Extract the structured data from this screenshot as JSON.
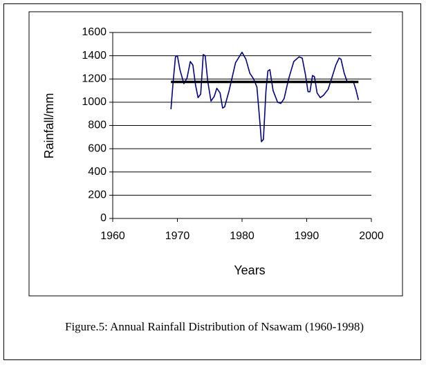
{
  "chart_data": {
    "type": "line",
    "caption": "Figure.5: Annual Rainfall Distribution of Nsawam (1960-1998)",
    "x_label": "Years",
    "y_label": "Rainfall/mm",
    "xlim": [
      1960,
      2000
    ],
    "xticks": [
      1960,
      1970,
      1980,
      1990,
      2000
    ],
    "ylim": [
      0,
      1600
    ],
    "yticks": [
      0,
      200,
      400,
      600,
      800,
      1000,
      1200,
      1400,
      1600
    ],
    "grid": true,
    "series": [
      {
        "color": "#000080",
        "x": [
          1969,
          1969.3,
          1969.7,
          1970,
          1970.4,
          1971,
          1971.5,
          1972,
          1972.4,
          1972.8,
          1973.2,
          1973.6,
          1974,
          1974.3,
          1974.7,
          1975.2,
          1975.7,
          1976.1,
          1976.6,
          1977,
          1977.3,
          1978,
          1979,
          1980,
          1980.6,
          1981.2,
          1981.8,
          1982.3,
          1982.8,
          1983,
          1983.3,
          1983.7,
          1984,
          1984.3,
          1984.8,
          1985.5,
          1986,
          1986.5,
          1987.2,
          1988,
          1988.8,
          1989.3,
          1989.8,
          1990.2,
          1990.5,
          1990.9,
          1991.2,
          1991.6,
          1992.1,
          1992.6,
          1993.3,
          1994,
          1994.5,
          1995,
          1995.3,
          1995.8,
          1996.3,
          1996.8,
          1997.2,
          1997.6,
          1998
        ],
        "values": [
          940,
          1150,
          1390,
          1400,
          1280,
          1160,
          1210,
          1350,
          1320,
          1150,
          1040,
          1070,
          1410,
          1400,
          1180,
          1010,
          1050,
          1120,
          1080,
          950,
          960,
          1100,
          1340,
          1430,
          1370,
          1250,
          1200,
          1130,
          800,
          660,
          680,
          1100,
          1270,
          1280,
          1100,
          1000,
          990,
          1030,
          1200,
          1350,
          1390,
          1380,
          1240,
          1090,
          1090,
          1230,
          1220,
          1080,
          1040,
          1060,
          1110,
          1230,
          1320,
          1380,
          1370,
          1250,
          1170,
          1180,
          1180,
          1110,
          1020
        ]
      },
      {
        "color": "#000000",
        "x": [
          1969,
          1998
        ],
        "values": [
          1175,
          1175
        ]
      }
    ]
  }
}
